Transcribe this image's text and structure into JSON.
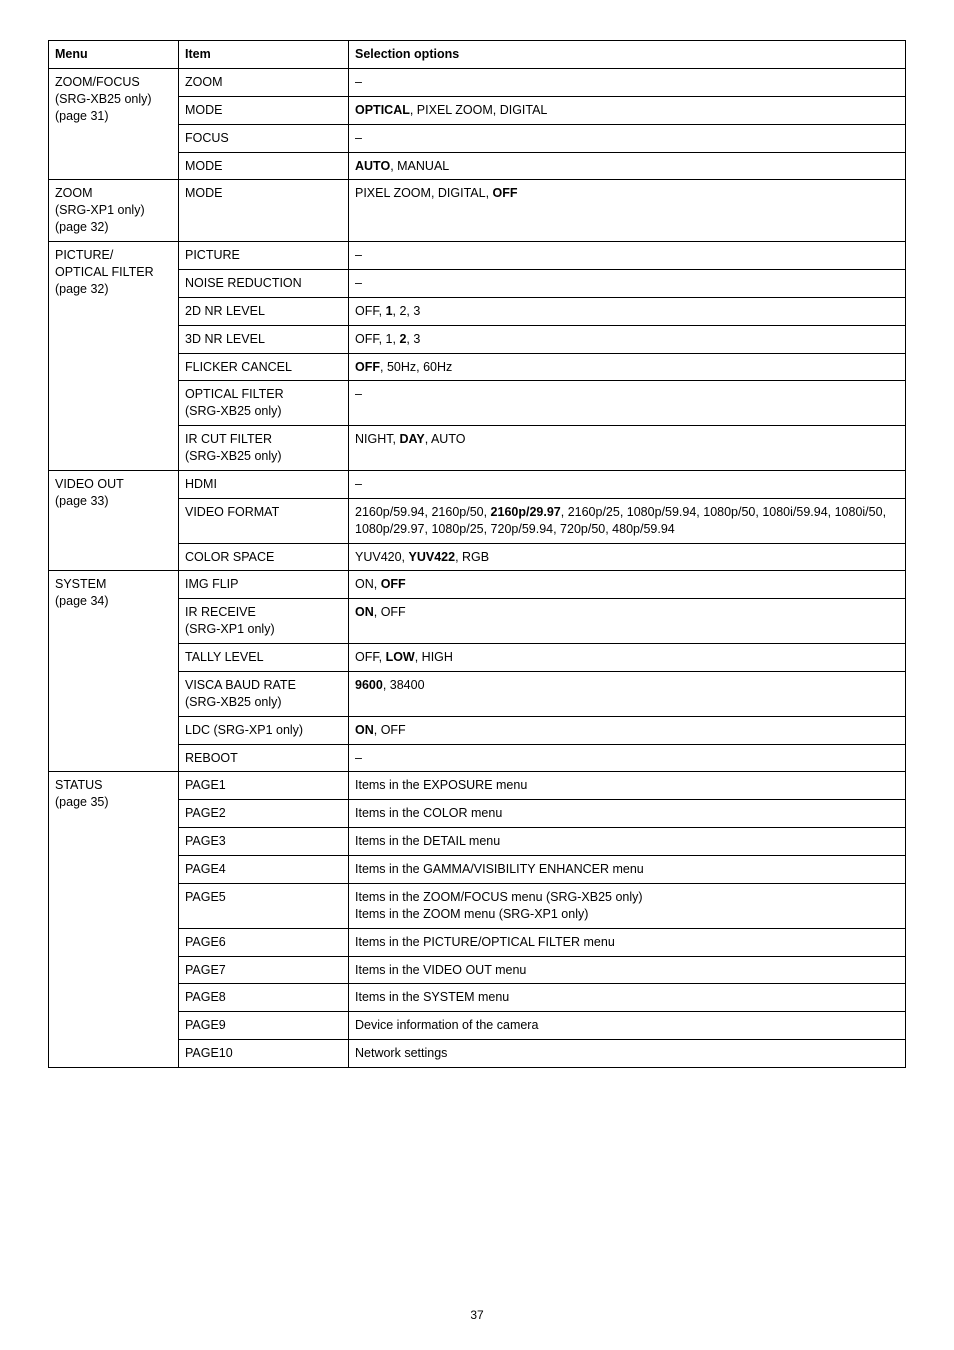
{
  "headers": {
    "menu": "Menu",
    "item": "Item",
    "sel": "Selection options"
  },
  "page_number": "37",
  "rows": [
    {
      "menu": {
        "lines": [
          "ZOOM/FOCUS",
          "(SRG-XB25 only)",
          "(page 31)"
        ],
        "rowspan": 4
      },
      "item": "ZOOM",
      "sel": [
        {
          "t": "–"
        }
      ]
    },
    {
      "item": "MODE",
      "sel": [
        {
          "t": "OPTICAL",
          "b": true
        },
        {
          "t": ", PIXEL ZOOM, DIGITAL"
        }
      ]
    },
    {
      "item": "FOCUS",
      "sel": [
        {
          "t": "–"
        }
      ]
    },
    {
      "item": "MODE",
      "sel": [
        {
          "t": "AUTO",
          "b": true
        },
        {
          "t": ", MANUAL"
        }
      ]
    },
    {
      "menu": {
        "lines": [
          "ZOOM",
          "(SRG-XP1 only)",
          "(page 32)"
        ],
        "rowspan": 1
      },
      "item": "MODE",
      "sel": [
        {
          "t": "PIXEL ZOOM, DIGITAL, "
        },
        {
          "t": "OFF",
          "b": true
        }
      ]
    },
    {
      "menu": {
        "lines": [
          "PICTURE/",
          "OPTICAL FILTER",
          "(page 32)"
        ],
        "rowspan": 7
      },
      "item": "PICTURE",
      "sel": [
        {
          "t": "–"
        }
      ]
    },
    {
      "item": "NOISE REDUCTION",
      "sel": [
        {
          "t": "–"
        }
      ]
    },
    {
      "item": "2D NR LEVEL",
      "sel": [
        {
          "t": "OFF, "
        },
        {
          "t": "1",
          "b": true
        },
        {
          "t": ", 2, 3"
        }
      ]
    },
    {
      "item": "3D NR LEVEL",
      "sel": [
        {
          "t": "OFF, 1, "
        },
        {
          "t": "2",
          "b": true
        },
        {
          "t": ", 3"
        }
      ]
    },
    {
      "item": "FLICKER CANCEL",
      "sel": [
        {
          "t": "OFF",
          "b": true
        },
        {
          "t": ", 50Hz, 60Hz"
        }
      ]
    },
    {
      "item_lines": [
        "OPTICAL FILTER",
        "(SRG-XB25 only)"
      ],
      "sel": [
        {
          "t": "–"
        }
      ]
    },
    {
      "item_lines": [
        "IR CUT FILTER",
        "(SRG-XB25 only)"
      ],
      "sel": [
        {
          "t": "NIGHT, "
        },
        {
          "t": "DAY",
          "b": true
        },
        {
          "t": ", AUTO"
        }
      ]
    },
    {
      "menu": {
        "lines": [
          "VIDEO OUT",
          "(page 33)"
        ],
        "rowspan": 3
      },
      "item": "HDMI",
      "sel": [
        {
          "t": "–"
        }
      ]
    },
    {
      "item": "VIDEO FORMAT",
      "sel": [
        {
          "t": "2160p/59.94, 2160p/50, "
        },
        {
          "t": "2160p/29.97",
          "b": true
        },
        {
          "t": ", 2160p/25, 1080p/59.94, 1080p/50, 1080i/59.94, 1080i/50, 1080p/29.97, 1080p/25, 720p/59.94, 720p/50, 480p/59.94"
        }
      ]
    },
    {
      "item": "COLOR SPACE",
      "sel": [
        {
          "t": "YUV420, "
        },
        {
          "t": "YUV422",
          "b": true
        },
        {
          "t": ", RGB"
        }
      ]
    },
    {
      "menu": {
        "lines": [
          "SYSTEM",
          "(page 34)"
        ],
        "rowspan": 6
      },
      "item": "IMG FLIP",
      "sel": [
        {
          "t": "ON, "
        },
        {
          "t": "OFF",
          "b": true
        }
      ]
    },
    {
      "item_lines": [
        "IR RECEIVE",
        "(SRG-XP1 only)"
      ],
      "sel": [
        {
          "t": "ON",
          "b": true
        },
        {
          "t": ", OFF"
        }
      ]
    },
    {
      "item": "TALLY LEVEL",
      "sel": [
        {
          "t": "OFF, "
        },
        {
          "t": "LOW",
          "b": true
        },
        {
          "t": ", HIGH"
        }
      ]
    },
    {
      "item_lines": [
        "VISCA BAUD RATE",
        "(SRG-XB25 only)"
      ],
      "sel": [
        {
          "t": "9600",
          "b": true
        },
        {
          "t": ", 38400"
        }
      ]
    },
    {
      "item": "LDC (SRG-XP1 only)",
      "sel": [
        {
          "t": "ON",
          "b": true
        },
        {
          "t": ", OFF"
        }
      ]
    },
    {
      "item": "REBOOT",
      "sel": [
        {
          "t": "–"
        }
      ]
    },
    {
      "menu": {
        "lines": [
          "STATUS",
          "(page 35)"
        ],
        "rowspan": 10
      },
      "item": "PAGE1",
      "sel": [
        {
          "t": "Items in the EXPOSURE menu"
        }
      ]
    },
    {
      "item": "PAGE2",
      "sel": [
        {
          "t": "Items in the COLOR menu"
        }
      ]
    },
    {
      "item": "PAGE3",
      "sel": [
        {
          "t": "Items in the DETAIL menu"
        }
      ]
    },
    {
      "item": "PAGE4",
      "sel": [
        {
          "t": "Items in the GAMMA/VISIBILITY ENHANCER menu"
        }
      ]
    },
    {
      "item": "PAGE5",
      "sel_lines": [
        [
          {
            "t": "Items in the ZOOM/FOCUS menu (SRG-XB25 only)"
          }
        ],
        [
          {
            "t": "Items in the ZOOM menu (SRG-XP1 only)"
          }
        ]
      ]
    },
    {
      "item": "PAGE6",
      "sel": [
        {
          "t": "Items in the PICTURE/OPTICAL FILTER menu"
        }
      ]
    },
    {
      "item": "PAGE7",
      "sel": [
        {
          "t": "Items in the VIDEO OUT menu"
        }
      ]
    },
    {
      "item": "PAGE8",
      "sel": [
        {
          "t": "Items in the SYSTEM menu"
        }
      ]
    },
    {
      "item": "PAGE9",
      "sel": [
        {
          "t": "Device information of the camera"
        }
      ]
    },
    {
      "item": "PAGE10",
      "sel": [
        {
          "t": "Network settings"
        }
      ]
    }
  ]
}
